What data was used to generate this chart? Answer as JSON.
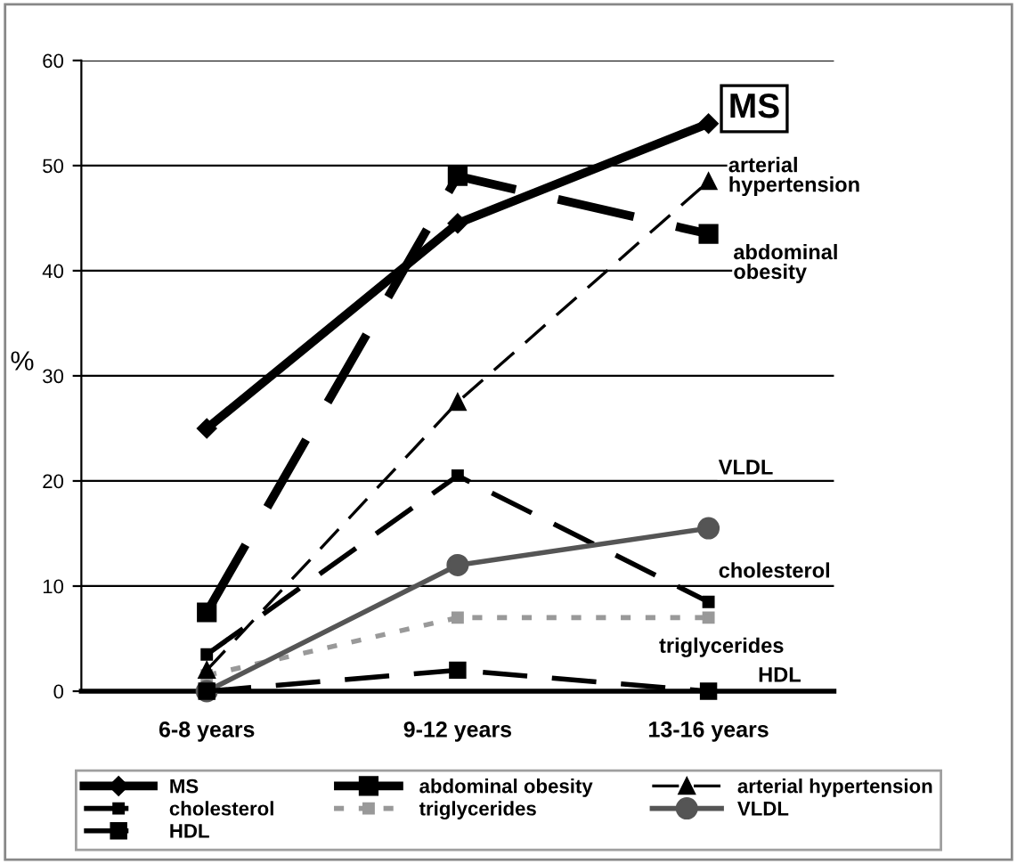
{
  "chart_data": {
    "type": "line",
    "ylabel": "%",
    "categories": [
      "6-8 years",
      "9-12 years",
      "13-16 years"
    ],
    "ylim": [
      0,
      60
    ],
    "yticks": [
      0,
      10,
      20,
      30,
      40,
      50,
      60
    ],
    "grid": "y",
    "legend": "bottom",
    "series": [
      {
        "name": "MS",
        "color": "#000000",
        "values": [
          25,
          44.5,
          54
        ],
        "marker": "diamond",
        "line_style": "solid"
      },
      {
        "name": "abdominal obesity",
        "color": "#000000",
        "values": [
          7.5,
          49,
          43.5
        ],
        "marker": "square",
        "line_style": "dashed"
      },
      {
        "name": "arterial hypertension",
        "color": "#000000",
        "values": [
          2,
          27.5,
          48.5
        ],
        "marker": "triangle",
        "line_style": "dashed"
      },
      {
        "name": "cholesterol",
        "color": "#000000",
        "values": [
          3.5,
          20.5,
          8.5
        ],
        "marker": "square",
        "line_style": "dashed"
      },
      {
        "name": "triglycerides",
        "color": "#999999",
        "values": [
          1.5,
          7,
          7
        ],
        "marker": "square",
        "line_style": "dotted"
      },
      {
        "name": "VLDL",
        "color": "#555555",
        "values": [
          0,
          12,
          15.5
        ],
        "marker": "circle",
        "line_style": "solid"
      },
      {
        "name": "HDL",
        "color": "#000000",
        "values": [
          0,
          2,
          0
        ],
        "marker": "square",
        "line_style": "dashed"
      }
    ],
    "annotations": [
      {
        "text": "MS",
        "x": "13-16 years",
        "y": 54
      },
      {
        "text": "arterial\nhypertension",
        "x": "13-16 years",
        "y": 48.5
      },
      {
        "text": "abdominal\nobesity",
        "x": "13-16 years",
        "y": 43.5
      },
      {
        "text": "VLDL",
        "x": "13-16 years",
        "y": 15.5
      },
      {
        "text": "cholesterol",
        "x": "13-16 years",
        "y": 8.5
      },
      {
        "text": "triglycerides",
        "x": "13-16 years",
        "y": 7
      },
      {
        "text": "HDL",
        "x": "13-16 years",
        "y": 0
      }
    ]
  }
}
